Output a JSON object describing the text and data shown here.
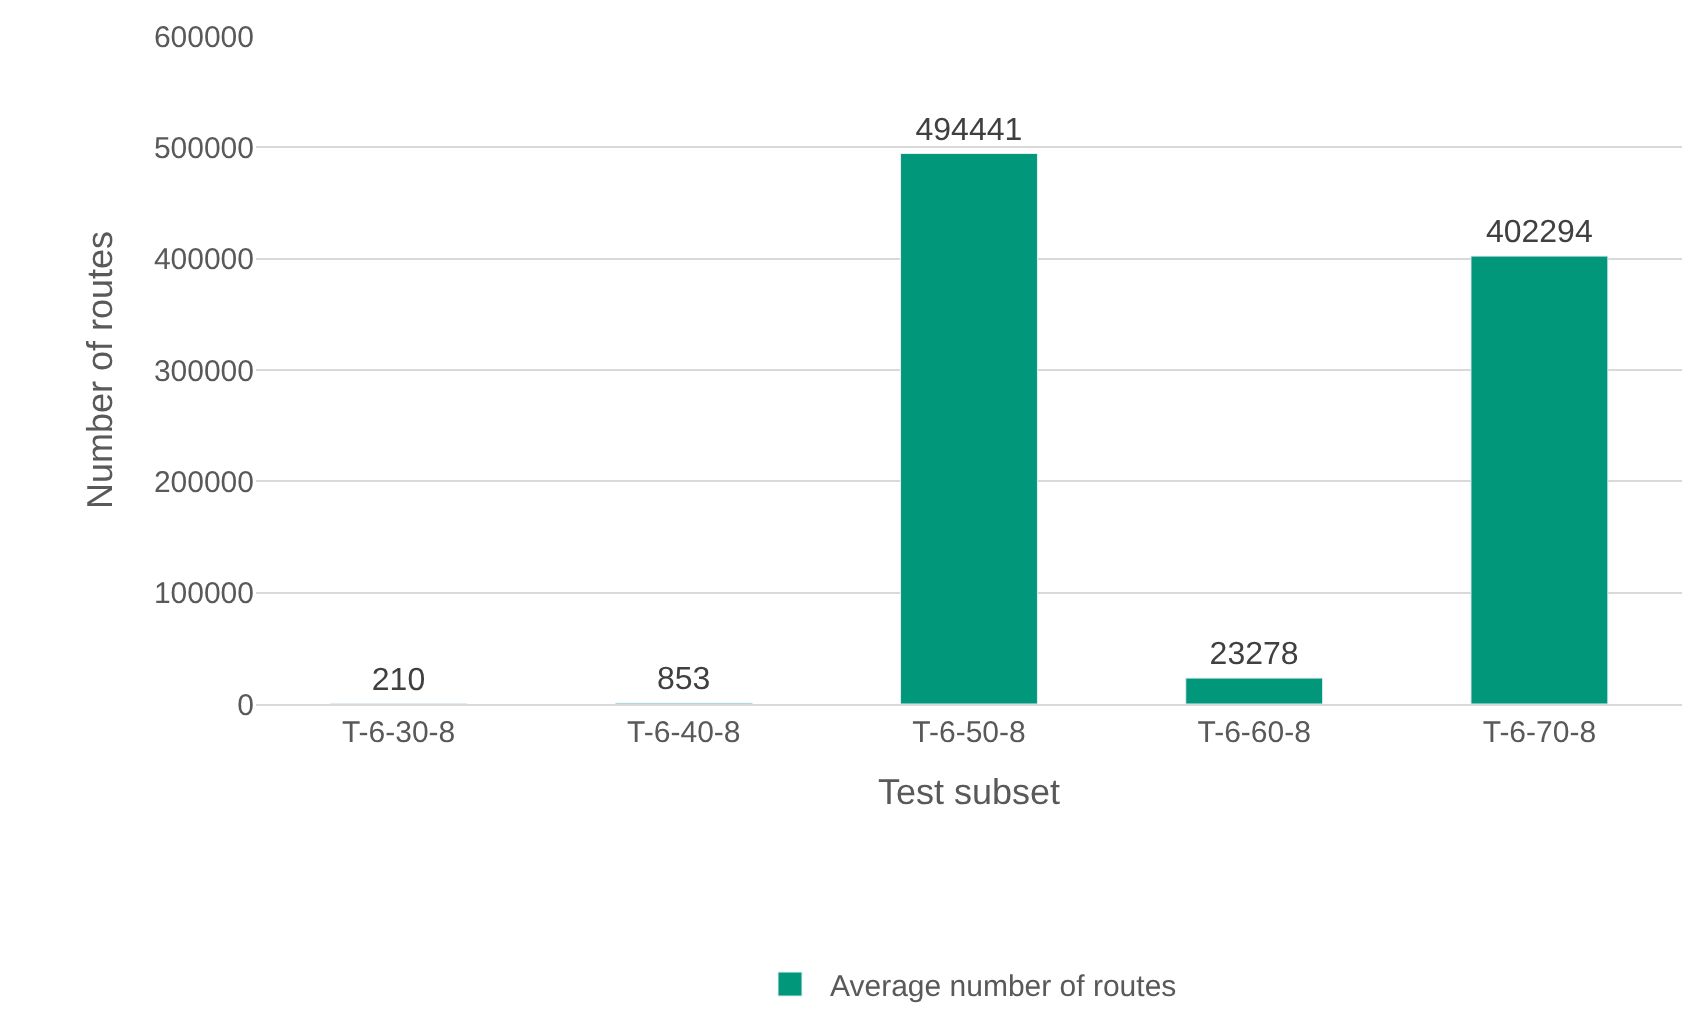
{
  "chart_data": {
    "type": "bar",
    "xlabel": "Test subset",
    "ylabel": "Number of routes",
    "categories": [
      "T-6-30-8",
      "T-6-40-8",
      "T-6-50-8",
      "T-6-60-8",
      "T-6-70-8"
    ],
    "series": [
      {
        "name": "Average number of routes",
        "color": "#00977a",
        "values": [
          210,
          853,
          494441,
          23278,
          402294
        ]
      }
    ],
    "ylim": [
      0,
      600000
    ],
    "yticks": [
      0,
      100000,
      200000,
      300000,
      400000,
      500000,
      600000
    ],
    "grid": "y",
    "legend": "bottom",
    "data_labels": true
  }
}
